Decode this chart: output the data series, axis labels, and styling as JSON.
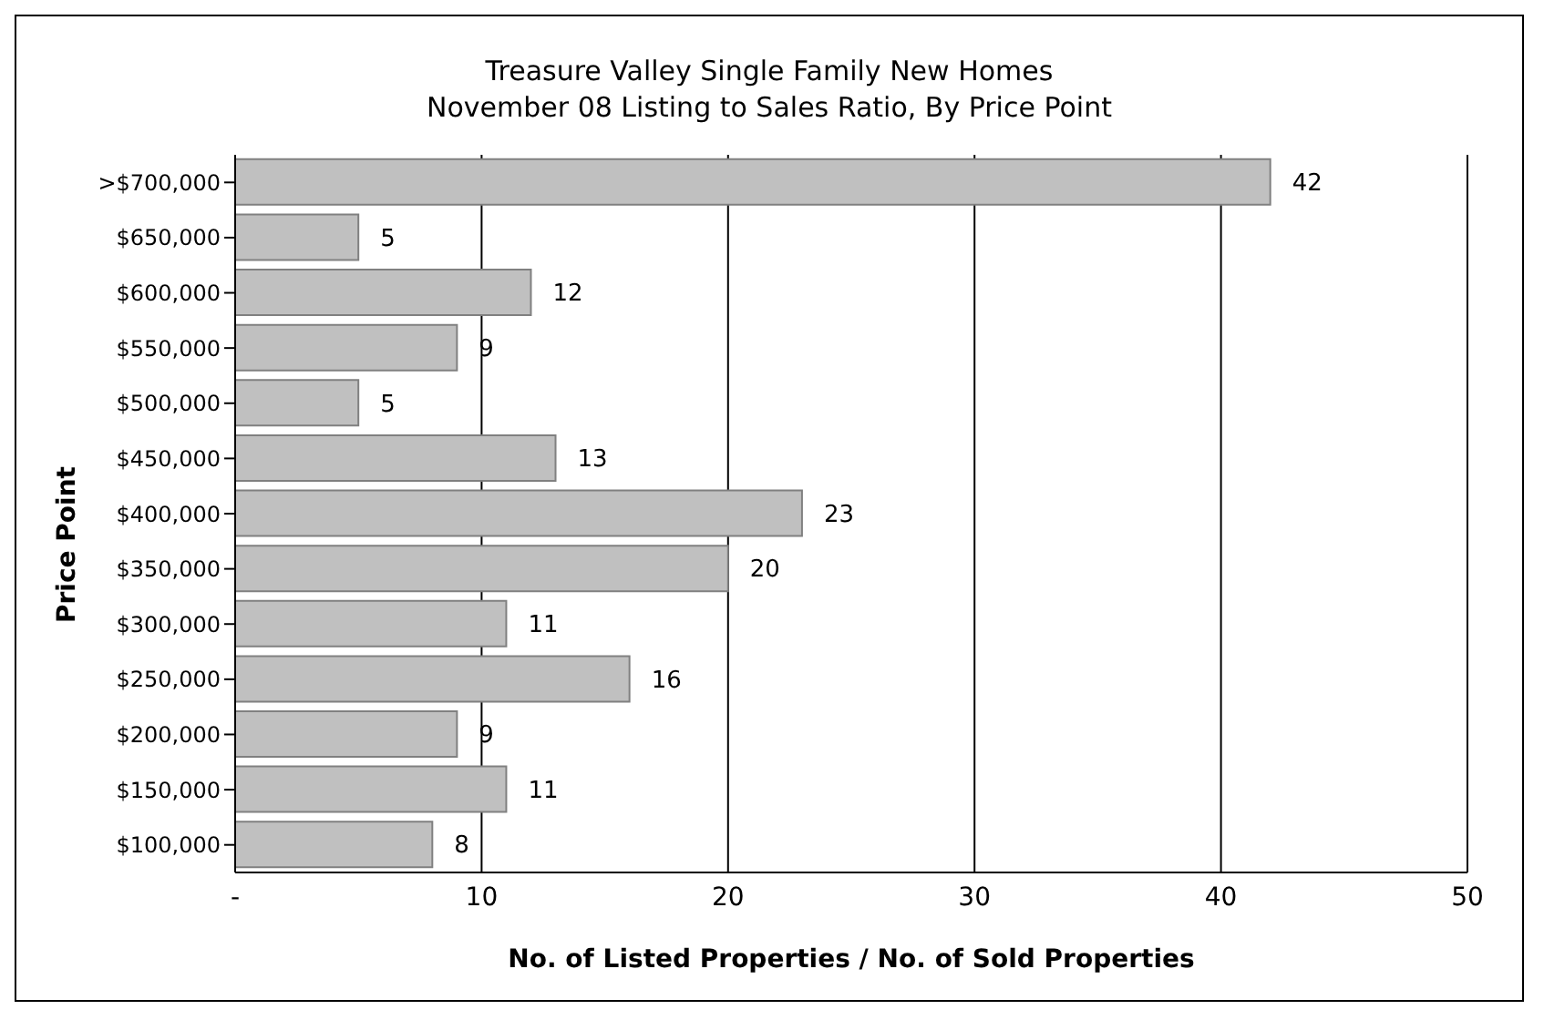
{
  "chart_data": {
    "type": "bar",
    "orientation": "horizontal",
    "title": "Treasure Valley Single Family New Homes",
    "subtitle": "November 08 Listing to Sales Ratio, By Price Point",
    "xlabel": "No. of Listed Properties / No. of Sold Properties",
    "ylabel": "Price Point",
    "categories": [
      ">$700,000",
      "$650,000",
      "$600,000",
      "$550,000",
      "$500,000",
      "$450,000",
      "$400,000",
      "$350,000",
      "$300,000",
      "$250,000",
      "$200,000",
      "$150,000",
      "$100,000"
    ],
    "values": [
      42,
      5,
      12,
      9,
      5,
      13,
      23,
      20,
      11,
      16,
      9,
      11,
      8
    ],
    "color": "#c0c0c0",
    "data_labels": true,
    "grid": "x",
    "xlim": [
      0,
      50
    ],
    "xticks": [
      {
        "value": 0,
        "label": "-"
      },
      10,
      20,
      30,
      40,
      50
    ]
  }
}
